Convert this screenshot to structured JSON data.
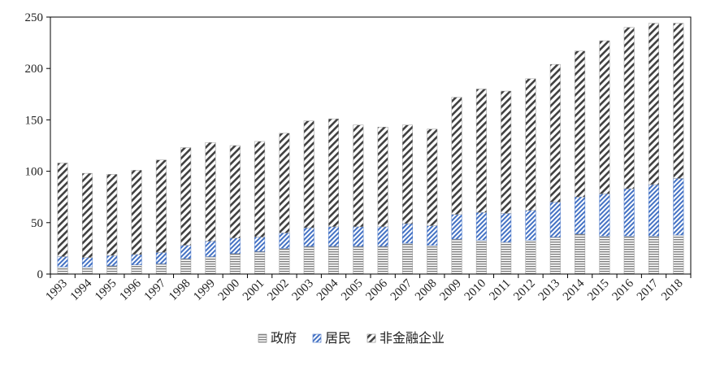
{
  "chart_data": {
    "type": "bar",
    "stacked": true,
    "title": "",
    "xlabel": "",
    "ylabel": "",
    "ylim": [
      0,
      250
    ],
    "yticks": [
      0,
      50,
      100,
      150,
      200,
      250
    ],
    "grid": false,
    "legend_position": "bottom",
    "categories": [
      "1993",
      "1994",
      "1995",
      "1996",
      "1997",
      "1998",
      "1999",
      "2000",
      "2001",
      "2002",
      "2003",
      "2004",
      "2005",
      "2006",
      "2007",
      "2008",
      "2009",
      "2010",
      "2011",
      "2012",
      "2013",
      "2014",
      "2015",
      "2016",
      "2017",
      "2018"
    ],
    "series": [
      {
        "name": "政府",
        "pattern": "horizontal-stripes",
        "color": "#7f7f7f",
        "values": [
          7,
          7,
          8,
          9,
          10,
          15,
          17,
          20,
          22,
          25,
          27,
          27,
          27,
          27,
          30,
          28,
          34,
          33,
          31,
          33,
          36,
          39,
          37,
          37,
          37,
          38
        ]
      },
      {
        "name": "居民",
        "pattern": "diagonal-blue",
        "color": "#4472c4",
        "values": [
          10,
          9,
          10,
          10,
          11,
          13,
          15,
          15,
          14,
          15,
          18,
          19,
          19,
          19,
          19,
          19,
          24,
          27,
          28,
          29,
          34,
          36,
          41,
          46,
          50,
          55
        ]
      },
      {
        "name": "非金融企业",
        "pattern": "diagonal-hatch",
        "color": "#404040",
        "values": [
          91,
          82,
          79,
          82,
          90,
          95,
          96,
          90,
          93,
          97,
          104,
          105,
          99,
          97,
          96,
          94,
          114,
          120,
          119,
          128,
          134,
          142,
          149,
          157,
          157,
          151
        ]
      }
    ]
  }
}
